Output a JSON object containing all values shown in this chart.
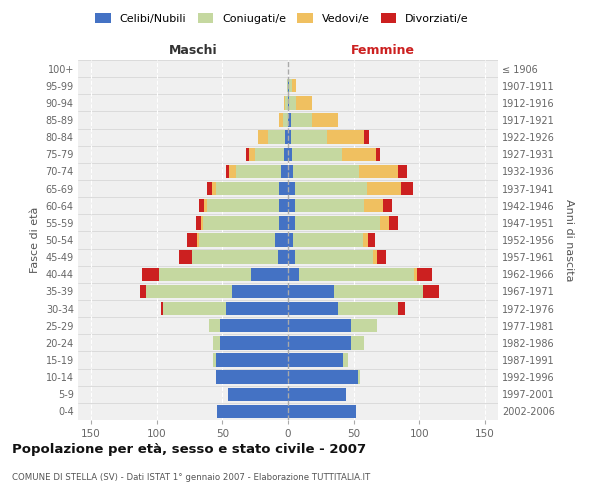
{
  "age_groups_bottom_to_top": [
    "0-4",
    "5-9",
    "10-14",
    "15-19",
    "20-24",
    "25-29",
    "30-34",
    "35-39",
    "40-44",
    "45-49",
    "50-54",
    "55-59",
    "60-64",
    "65-69",
    "70-74",
    "75-79",
    "80-84",
    "85-89",
    "90-94",
    "95-99",
    "100+"
  ],
  "birth_years_bottom_to_top": [
    "2002-2006",
    "1997-2001",
    "1992-1996",
    "1987-1991",
    "1982-1986",
    "1977-1981",
    "1972-1976",
    "1967-1971",
    "1962-1966",
    "1957-1961",
    "1952-1956",
    "1947-1951",
    "1942-1946",
    "1937-1941",
    "1932-1936",
    "1927-1931",
    "1922-1926",
    "1917-1921",
    "1912-1916",
    "1907-1911",
    "≤ 1906"
  ],
  "colors": {
    "celibi": "#4472C4",
    "coniugati": "#C5D8A0",
    "vedovi": "#F0C060",
    "divorziati": "#CC2020"
  },
  "maschi": {
    "celibi": [
      54,
      46,
      55,
      55,
      52,
      52,
      47,
      43,
      28,
      8,
      10,
      7,
      7,
      7,
      5,
      3,
      2,
      0,
      0,
      0,
      0
    ],
    "coniugati": [
      0,
      0,
      0,
      2,
      5,
      8,
      48,
      65,
      70,
      65,
      58,
      58,
      55,
      48,
      35,
      22,
      13,
      4,
      2,
      1,
      0
    ],
    "vedovi": [
      0,
      0,
      0,
      0,
      0,
      0,
      0,
      0,
      0,
      0,
      1,
      1,
      2,
      3,
      5,
      5,
      8,
      3,
      1,
      0,
      0
    ],
    "divorziati": [
      0,
      0,
      0,
      0,
      0,
      0,
      2,
      5,
      13,
      10,
      8,
      4,
      4,
      4,
      2,
      2,
      0,
      0,
      0,
      0,
      0
    ]
  },
  "femmine": {
    "celibi": [
      52,
      44,
      53,
      42,
      48,
      48,
      38,
      35,
      8,
      5,
      4,
      5,
      5,
      5,
      4,
      3,
      2,
      2,
      1,
      1,
      0
    ],
    "coniugati": [
      0,
      0,
      2,
      4,
      10,
      20,
      46,
      68,
      88,
      60,
      53,
      65,
      53,
      55,
      50,
      38,
      28,
      16,
      5,
      2,
      0
    ],
    "vedovi": [
      0,
      0,
      0,
      0,
      0,
      0,
      0,
      0,
      2,
      3,
      4,
      7,
      14,
      26,
      30,
      26,
      28,
      20,
      12,
      3,
      0
    ],
    "divorziati": [
      0,
      0,
      0,
      0,
      0,
      0,
      5,
      12,
      12,
      7,
      5,
      7,
      7,
      9,
      7,
      3,
      4,
      0,
      0,
      0,
      0
    ]
  },
  "title": "Popolazione per età, sesso e stato civile - 2007",
  "subtitle": "COMUNE DI STELLA (SV) - Dati ISTAT 1° gennaio 2007 - Elaborazione TUTTITALIA.IT",
  "xlabel_left": "Maschi",
  "xlabel_right": "Femmine",
  "ylabel_left": "Fasce di età",
  "ylabel_right": "Anni di nascita",
  "xlim": 160,
  "background_color": "#ffffff",
  "plot_bg_color": "#f0f0f0",
  "grid_color": "#ffffff",
  "legend_labels": [
    "Celibi/Nubili",
    "Coniugati/e",
    "Vedovi/e",
    "Divorziati/e"
  ]
}
